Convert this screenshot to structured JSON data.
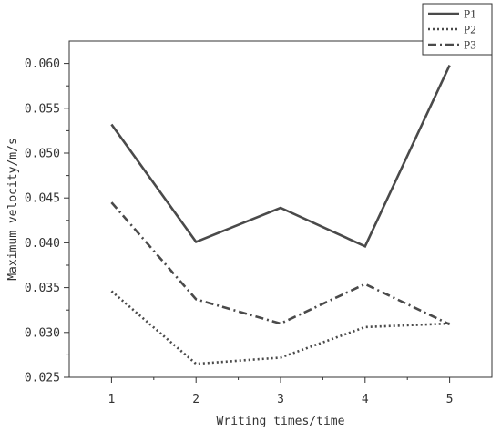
{
  "chart_data": {
    "type": "line",
    "title": "",
    "xlabel": "Writing times/time",
    "ylabel": "Maximum velocity/m/s",
    "x": [
      1,
      2,
      3,
      4,
      5
    ],
    "xticks": [
      "1",
      "2",
      "3",
      "4",
      "5"
    ],
    "xlim": [
      0.5,
      5.5
    ],
    "yticks": [
      "0.025",
      "0.030",
      "0.035",
      "0.040",
      "0.045",
      "0.050",
      "0.055",
      "0.060"
    ],
    "ylim": [
      0.025,
      0.0625
    ],
    "grid": false,
    "legend_position": "top-right",
    "series": [
      {
        "name": "P1",
        "values": [
          0.0532,
          0.0401,
          0.0439,
          0.0396,
          0.0598
        ],
        "line_style": "solid",
        "color": "#4a4a4a"
      },
      {
        "name": "P2",
        "values": [
          0.0346,
          0.0265,
          0.0272,
          0.0306,
          0.031
        ],
        "line_style": "dotted",
        "color": "#4a4a4a"
      },
      {
        "name": "P3",
        "values": [
          0.0445,
          0.0337,
          0.031,
          0.0354,
          0.0309
        ],
        "line_style": "dash-dot",
        "color": "#4a4a4a"
      }
    ]
  }
}
